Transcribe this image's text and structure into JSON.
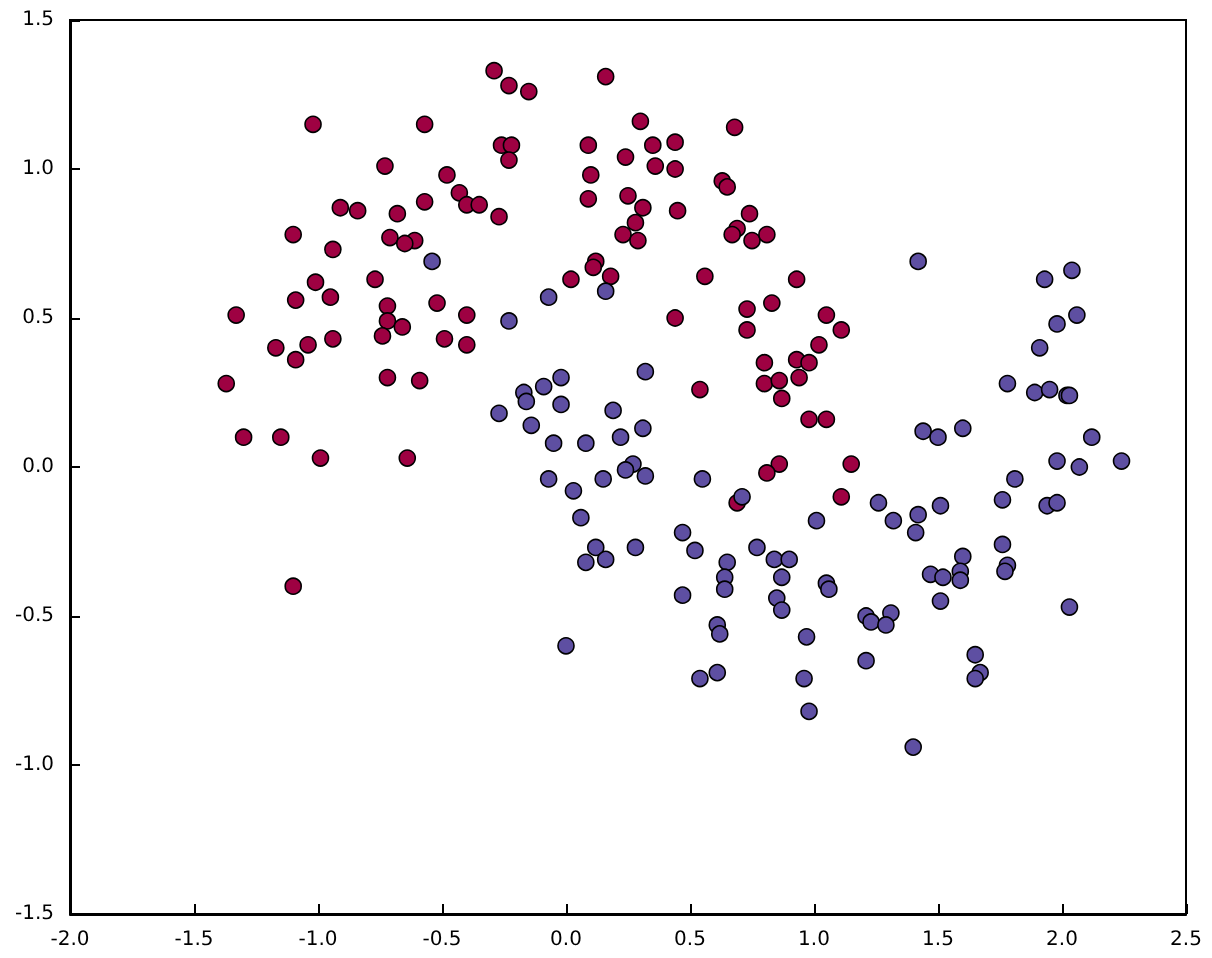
{
  "chart_data": {
    "type": "scatter",
    "marker": "circle",
    "grid": false,
    "xlim": [
      -2,
      2.5
    ],
    "ylim": [
      -1.5,
      1.5
    ],
    "xticks": [
      {
        "value": -2,
        "label": "-2.0"
      },
      {
        "value": -1.5,
        "label": "-1.5"
      },
      {
        "value": -1,
        "label": "-1.0"
      },
      {
        "value": -0.5,
        "label": "-0.5"
      },
      {
        "value": 0,
        "label": "0.0"
      },
      {
        "value": 0.5,
        "label": "0.5"
      },
      {
        "value": 1,
        "label": "1.0"
      },
      {
        "value": 1.5,
        "label": "1.5"
      },
      {
        "value": 2,
        "label": "2.0"
      },
      {
        "value": 2.5,
        "label": "2.5"
      }
    ],
    "yticks": [
      {
        "value": -1.5,
        "label": "-1.5"
      },
      {
        "value": -1,
        "label": "-1.0"
      },
      {
        "value": -0.5,
        "label": "-0.5"
      },
      {
        "value": 0,
        "label": "0.0"
      },
      {
        "value": 0.5,
        "label": "0.5"
      },
      {
        "value": 1,
        "label": "1.0"
      },
      {
        "value": 1.5,
        "label": "1.5"
      }
    ],
    "series": [
      {
        "color": "#9e0142",
        "x": [
          -0.29,
          -0.23,
          -0.15,
          -1.02,
          -0.57,
          -0.26,
          -0.22,
          -0.23,
          -0.73,
          -0.48,
          -0.43,
          -0.4,
          -0.35,
          -0.91,
          -0.84,
          -0.68,
          -0.57,
          -0.27,
          -1.1,
          -0.94,
          -0.71,
          -0.61,
          -0.65,
          -0.77,
          -1.01,
          -1.09,
          -0.95,
          -0.72,
          -0.52,
          -0.4,
          -1.33,
          -0.72,
          -0.66,
          -0.94,
          -0.74,
          -0.49,
          -0.4,
          -1.17,
          -1.04,
          -1.09,
          -0.72,
          -0.59,
          -1.37,
          -1.3,
          -1.15,
          -0.99,
          -0.64,
          -1.1,
          0.16,
          0.3,
          0.68,
          0.09,
          0.35,
          0.44,
          0.24,
          0.36,
          0.44,
          0.1,
          0.09,
          0.25,
          0.31,
          0.45,
          0.28,
          0.23,
          0.29,
          0.63,
          0.65,
          0.74,
          0.69,
          0.67,
          0.75,
          0.81,
          0.12,
          0.11,
          0.18,
          0.02,
          0.56,
          0.93,
          0.44,
          0.83,
          0.73,
          0.73,
          1.05,
          1.11,
          1.02,
          0.8,
          0.93,
          0.98,
          0.94,
          0.8,
          0.86,
          0.87,
          0.98,
          1.05,
          0.54,
          0.86,
          0.81,
          1.15,
          1.11,
          0.69
        ],
        "values": [
          1.33,
          1.28,
          1.26,
          1.15,
          1.15,
          1.08,
          1.08,
          1.03,
          1.01,
          0.98,
          0.92,
          0.88,
          0.88,
          0.87,
          0.86,
          0.85,
          0.89,
          0.84,
          0.78,
          0.73,
          0.77,
          0.76,
          0.75,
          0.63,
          0.62,
          0.56,
          0.57,
          0.54,
          0.55,
          0.51,
          0.51,
          0.49,
          0.47,
          0.43,
          0.44,
          0.43,
          0.41,
          0.4,
          0.41,
          0.36,
          0.3,
          0.29,
          0.28,
          0.1,
          0.1,
          0.03,
          0.03,
          -0.4,
          1.31,
          1.16,
          1.14,
          1.08,
          1.08,
          1.09,
          1.04,
          1.01,
          1.0,
          0.98,
          0.9,
          0.91,
          0.87,
          0.86,
          0.82,
          0.78,
          0.76,
          0.96,
          0.94,
          0.85,
          0.8,
          0.78,
          0.76,
          0.78,
          0.69,
          0.67,
          0.64,
          0.63,
          0.64,
          0.63,
          0.5,
          0.55,
          0.53,
          0.46,
          0.51,
          0.46,
          0.41,
          0.35,
          0.36,
          0.35,
          0.3,
          0.28,
          0.29,
          0.23,
          0.16,
          0.16,
          0.26,
          0.01,
          -0.02,
          0.01,
          -0.1,
          -0.12
        ]
      },
      {
        "color": "#5e4fa2",
        "x": [
          -0.54,
          -0.07,
          -0.23,
          0.16,
          -0.17,
          -0.16,
          -0.09,
          -0.02,
          -0.02,
          0.32,
          -0.27,
          -0.14,
          -0.05,
          0.08,
          0.19,
          0.22,
          0.31,
          0.27,
          0.24,
          0.32,
          0.15,
          -0.07,
          0.03,
          0.06,
          0.55,
          0.71,
          1.01,
          1.26,
          1.32,
          1.42,
          1.41,
          0.47,
          0.52,
          0.77,
          0.84,
          0.9,
          0.65,
          0.64,
          0.64,
          0.87,
          1.05,
          1.06,
          0.12,
          0.08,
          0.16,
          0.28,
          0.47,
          0.85,
          0.87,
          0.61,
          0.62,
          1.21,
          1.23,
          1.31,
          1.29,
          0.97,
          0.0,
          1.21,
          0.54,
          0.61,
          0.96,
          0.98,
          1.42,
          1.91,
          1.93,
          2.04,
          1.98,
          2.06,
          1.78,
          1.89,
          1.95,
          2.02,
          2.03,
          1.44,
          1.5,
          1.6,
          2.12,
          1.98,
          2.07,
          2.24,
          1.81,
          1.76,
          1.94,
          1.98,
          1.51,
          1.76,
          1.6,
          1.78,
          1.77,
          1.47,
          1.52,
          1.59,
          1.59,
          1.51,
          2.03,
          1.65,
          1.67,
          1.65,
          1.4
        ],
        "values": [
          0.69,
          0.57,
          0.49,
          0.59,
          0.25,
          0.22,
          0.27,
          0.3,
          0.21,
          0.32,
          0.18,
          0.14,
          0.08,
          0.08,
          0.19,
          0.1,
          0.13,
          0.01,
          -0.01,
          -0.03,
          -0.04,
          -0.04,
          -0.08,
          -0.17,
          -0.04,
          -0.1,
          -0.18,
          -0.12,
          -0.18,
          -0.16,
          -0.22,
          -0.22,
          -0.28,
          -0.27,
          -0.31,
          -0.31,
          -0.32,
          -0.37,
          -0.41,
          -0.37,
          -0.39,
          -0.41,
          -0.27,
          -0.32,
          -0.31,
          -0.27,
          -0.43,
          -0.44,
          -0.48,
          -0.53,
          -0.56,
          -0.5,
          -0.52,
          -0.49,
          -0.53,
          -0.57,
          -0.6,
          -0.65,
          -0.71,
          -0.69,
          -0.71,
          -0.82,
          0.69,
          0.4,
          0.63,
          0.66,
          0.48,
          0.51,
          0.28,
          0.25,
          0.26,
          0.24,
          0.24,
          0.12,
          0.1,
          0.13,
          0.1,
          0.02,
          0.0,
          0.02,
          -0.04,
          -0.11,
          -0.13,
          -0.12,
          -0.13,
          -0.26,
          -0.3,
          -0.33,
          -0.35,
          -0.36,
          -0.37,
          -0.35,
          -0.38,
          -0.45,
          -0.47,
          -0.63,
          -0.69,
          -0.71,
          -0.94
        ]
      }
    ]
  }
}
